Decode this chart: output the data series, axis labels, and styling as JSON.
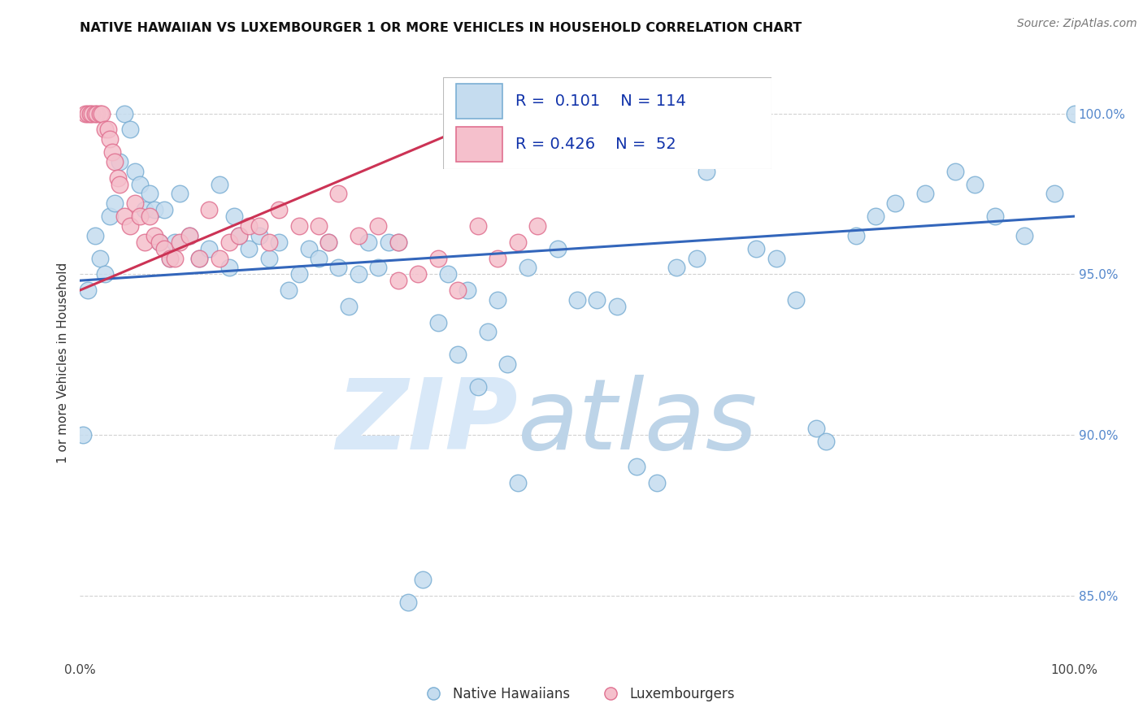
{
  "title": "NATIVE HAWAIIAN VS LUXEMBOURGER 1 OR MORE VEHICLES IN HOUSEHOLD CORRELATION CHART",
  "source": "Source: ZipAtlas.com",
  "ylabel": "1 or more Vehicles in Household",
  "watermark_zip": "ZIP",
  "watermark_atlas": "atlas",
  "legend_blue_R": "0.101",
  "legend_blue_N": "114",
  "legend_pink_R": "0.426",
  "legend_pink_N": "52",
  "legend_blue_label": "Native Hawaiians",
  "legend_pink_label": "Luxembourgers",
  "x_range": [
    0,
    100
  ],
  "y_range": [
    83.0,
    101.5
  ],
  "y_ticks": [
    85.0,
    90.0,
    95.0,
    100.0
  ],
  "blue_face_color": "#C5DCEF",
  "blue_edge_color": "#7BAFD4",
  "blue_line_color": "#3366BB",
  "pink_face_color": "#F5C0CC",
  "pink_edge_color": "#E07090",
  "pink_line_color": "#CC3355",
  "grid_color": "#CCCCCC",
  "right_tick_color": "#5588CC",
  "title_color": "#111111",
  "source_color": "#777777",
  "blue_reg_x0": 0,
  "blue_reg_y0": 94.8,
  "blue_reg_x1": 100,
  "blue_reg_y1": 96.8,
  "pink_reg_x0": 0,
  "pink_reg_y0": 94.5,
  "pink_reg_x1": 46,
  "pink_reg_y1": 100.5,
  "blue_x": [
    0.3,
    0.8,
    1.5,
    2.0,
    2.5,
    3.0,
    3.5,
    4.0,
    4.5,
    5.0,
    5.5,
    6.0,
    6.5,
    7.0,
    7.5,
    8.0,
    8.5,
    9.0,
    9.5,
    10.0,
    11.0,
    12.0,
    13.0,
    14.0,
    15.0,
    15.5,
    16.0,
    17.0,
    18.0,
    19.0,
    20.0,
    21.0,
    22.0,
    23.0,
    24.0,
    25.0,
    26.0,
    27.0,
    28.0,
    29.0,
    30.0,
    31.0,
    32.0,
    33.0,
    34.5,
    36.0,
    37.0,
    38.0,
    39.0,
    40.0,
    41.0,
    42.0,
    43.0,
    44.0,
    45.0,
    48.0,
    50.0,
    52.0,
    54.0,
    56.0,
    58.0,
    60.0,
    62.0,
    63.0,
    65.0,
    68.0,
    70.0,
    72.0,
    74.0,
    75.0,
    78.0,
    80.0,
    82.0,
    85.0,
    88.0,
    90.0,
    92.0,
    95.0,
    98.0,
    100.0
  ],
  "blue_y": [
    90.0,
    94.5,
    96.2,
    95.5,
    95.0,
    96.8,
    97.2,
    98.5,
    100.0,
    99.5,
    98.2,
    97.8,
    97.0,
    97.5,
    97.0,
    96.0,
    97.0,
    95.5,
    96.0,
    97.5,
    96.2,
    95.5,
    95.8,
    97.8,
    95.2,
    96.8,
    96.2,
    95.8,
    96.2,
    95.5,
    96.0,
    94.5,
    95.0,
    95.8,
    95.5,
    96.0,
    95.2,
    94.0,
    95.0,
    96.0,
    95.2,
    96.0,
    96.0,
    84.8,
    85.5,
    93.5,
    95.0,
    92.5,
    94.5,
    91.5,
    93.2,
    94.2,
    92.2,
    88.5,
    95.2,
    95.8,
    94.2,
    94.2,
    94.0,
    89.0,
    88.5,
    95.2,
    95.5,
    98.2,
    98.8,
    95.8,
    95.5,
    94.2,
    90.2,
    89.8,
    96.2,
    96.8,
    97.2,
    97.5,
    98.2,
    97.8,
    96.8,
    96.2,
    97.5,
    100.0
  ],
  "pink_x": [
    0.5,
    0.8,
    1.0,
    1.2,
    1.5,
    1.7,
    2.0,
    2.2,
    2.5,
    2.8,
    3.0,
    3.2,
    3.5,
    3.8,
    4.0,
    4.5,
    5.0,
    5.5,
    6.0,
    6.5,
    7.0,
    7.5,
    8.0,
    8.5,
    9.0,
    9.5,
    10.0,
    11.0,
    12.0,
    13.0,
    14.0,
    15.0,
    16.0,
    17.0,
    18.0,
    19.0,
    20.0,
    22.0,
    24.0,
    25.0,
    26.0,
    28.0,
    30.0,
    32.0,
    34.0,
    36.0,
    38.0,
    40.0,
    42.0,
    44.0,
    46.0,
    32.0
  ],
  "pink_y": [
    100.0,
    100.0,
    100.0,
    100.0,
    100.0,
    100.0,
    100.0,
    100.0,
    99.5,
    99.5,
    99.2,
    98.8,
    98.5,
    98.0,
    97.8,
    96.8,
    96.5,
    97.2,
    96.8,
    96.0,
    96.8,
    96.2,
    96.0,
    95.8,
    95.5,
    95.5,
    96.0,
    96.2,
    95.5,
    97.0,
    95.5,
    96.0,
    96.2,
    96.5,
    96.5,
    96.0,
    97.0,
    96.5,
    96.5,
    96.0,
    97.5,
    96.2,
    96.5,
    96.0,
    95.0,
    95.5,
    94.5,
    96.5,
    95.5,
    96.0,
    96.5,
    94.8
  ]
}
